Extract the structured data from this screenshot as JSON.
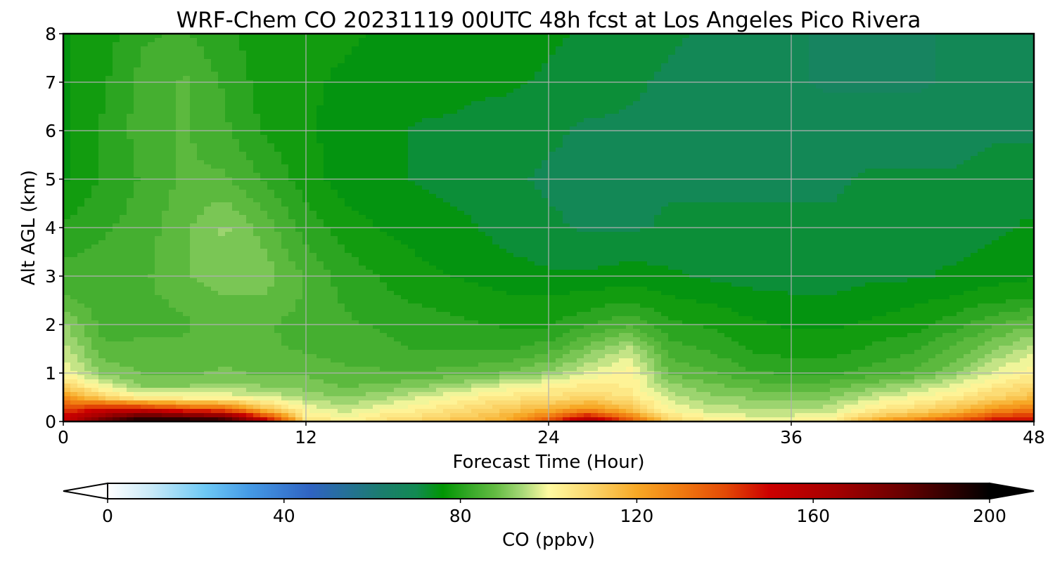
{
  "chart_data": {
    "type": "heatmap",
    "title": "WRF-Chem CO  20231119 00UTC 48h fcst at Los Angeles Pico Rivera",
    "xlabel": "Forecast Time (Hour)",
    "ylabel": "Alt AGL (km)",
    "xlim": [
      0,
      48
    ],
    "ylim": [
      0,
      8
    ],
    "x_ticks": [
      0,
      12,
      24,
      36,
      48
    ],
    "y_ticks": [
      0,
      1,
      2,
      3,
      4,
      5,
      6,
      7,
      8
    ],
    "grid": true,
    "colorbar": {
      "label": "CO  (ppbv)",
      "orientation": "horizontal",
      "placement": "bottom",
      "range": [
        0,
        200
      ],
      "ticks": [
        0,
        40,
        80,
        120,
        160,
        200
      ],
      "extend": "both"
    },
    "x": [
      0,
      2,
      4,
      6,
      8,
      10,
      12,
      14,
      16,
      18,
      20,
      22,
      24,
      26,
      28,
      30,
      32,
      34,
      36,
      38,
      40,
      42,
      44,
      46,
      48
    ],
    "y": [
      0,
      0.1,
      0.25,
      0.5,
      0.75,
      1,
      1.5,
      2,
      2.5,
      3,
      4,
      5,
      6,
      7,
      8
    ],
    "z": [
      [
        150,
        185,
        200,
        200,
        195,
        160,
        108,
        102,
        108,
        112,
        115,
        120,
        140,
        165,
        140,
        110,
        104,
        102,
        102,
        104,
        120,
        130,
        140,
        150,
        150
      ],
      [
        150,
        170,
        185,
        180,
        175,
        140,
        104,
        100,
        105,
        108,
        112,
        117,
        130,
        150,
        128,
        106,
        100,
        98,
        98,
        100,
        112,
        118,
        126,
        140,
        145
      ],
      [
        140,
        150,
        150,
        140,
        135,
        115,
        100,
        96,
        100,
        104,
        108,
        113,
        118,
        125,
        115,
        100,
        96,
        95,
        94,
        96,
        104,
        108,
        114,
        124,
        130
      ],
      [
        125,
        110,
        100,
        100,
        100,
        98,
        93,
        91,
        94,
        98,
        102,
        105,
        107,
        110,
        106,
        96,
        92,
        91,
        90,
        91,
        96,
        100,
        104,
        110,
        115
      ],
      [
        110,
        98,
        91,
        91,
        92,
        91,
        90,
        88,
        89,
        91,
        94,
        98,
        101,
        104,
        103,
        92,
        89,
        87,
        86,
        87,
        90,
        93,
        98,
        104,
        108
      ],
      [
        100,
        91,
        88,
        88,
        89,
        88,
        88,
        86,
        86,
        86,
        87,
        89,
        92,
        98,
        102,
        88,
        86,
        83,
        82,
        82,
        84,
        86,
        91,
        98,
        103
      ],
      [
        96,
        86,
        86,
        86,
        87,
        86,
        85,
        84,
        83,
        82,
        82,
        82,
        84,
        90,
        95,
        84,
        82,
        79,
        78,
        78,
        80,
        82,
        86,
        91,
        96
      ],
      [
        92,
        84,
        85,
        85,
        87,
        86,
        84,
        83,
        82,
        81,
        80,
        79,
        79,
        82,
        85,
        80,
        79,
        77,
        76,
        76,
        77,
        78,
        81,
        85,
        88
      ],
      [
        86,
        84,
        85,
        86,
        88,
        88,
        85,
        82,
        80,
        79,
        78,
        77,
        77,
        78,
        79,
        77,
        76,
        75,
        74,
        74,
        75,
        76,
        77,
        79,
        80
      ],
      [
        84,
        84,
        85,
        88,
        91,
        90,
        85,
        81,
        79,
        77,
        76,
        75,
        74,
        74,
        75,
        74,
        73,
        72,
        72,
        72,
        73,
        73,
        74,
        75,
        76
      ],
      [
        80,
        82,
        84,
        88,
        92,
        87,
        81,
        78,
        76,
        75,
        74,
        72,
        71,
        70,
        70,
        71,
        71,
        71,
        71,
        71,
        72,
        72,
        72,
        73,
        74
      ],
      [
        76,
        80,
        83,
        86,
        86,
        82,
        78,
        75,
        74,
        73,
        72,
        71,
        70,
        70,
        70,
        70,
        70,
        70,
        70,
        70,
        71,
        71,
        71,
        72,
        72
      ],
      [
        76,
        80,
        84,
        86,
        83,
        79,
        77,
        75,
        74,
        73,
        73,
        72,
        71,
        70,
        70,
        70,
        70,
        70,
        69,
        69,
        69,
        69,
        69,
        70,
        70
      ],
      [
        76,
        79,
        84,
        86,
        82,
        78,
        77,
        76,
        75,
        75,
        74,
        74,
        73,
        72,
        71,
        70,
        69,
        69,
        68,
        67,
        67,
        67,
        68,
        69,
        70
      ],
      [
        76,
        78,
        82,
        83,
        80,
        78,
        77,
        77,
        76,
        76,
        75,
        75,
        74,
        73,
        72,
        71,
        70,
        69,
        68,
        67,
        67,
        67,
        68,
        69,
        70
      ]
    ],
    "colormap": [
      {
        "v": 0,
        "color": "#ffffff"
      },
      {
        "v": 10,
        "color": "#c8eaf8"
      },
      {
        "v": 22,
        "color": "#6ec9f5"
      },
      {
        "v": 32,
        "color": "#459be6"
      },
      {
        "v": 46,
        "color": "#2f63c2"
      },
      {
        "v": 62,
        "color": "#1b7d6e"
      },
      {
        "v": 70,
        "color": "#128a52"
      },
      {
        "v": 76,
        "color": "#019603"
      },
      {
        "v": 82,
        "color": "#35a827"
      },
      {
        "v": 88,
        "color": "#64bc43"
      },
      {
        "v": 94,
        "color": "#a7d978"
      },
      {
        "v": 100,
        "color": "#fffaa1"
      },
      {
        "v": 110,
        "color": "#fbd56a"
      },
      {
        "v": 120,
        "color": "#f7a826"
      },
      {
        "v": 130,
        "color": "#f07a10"
      },
      {
        "v": 140,
        "color": "#e44a06"
      },
      {
        "v": 150,
        "color": "#cc0000"
      },
      {
        "v": 165,
        "color": "#a50000"
      },
      {
        "v": 180,
        "color": "#6a0000"
      },
      {
        "v": 200,
        "color": "#000000"
      }
    ]
  }
}
